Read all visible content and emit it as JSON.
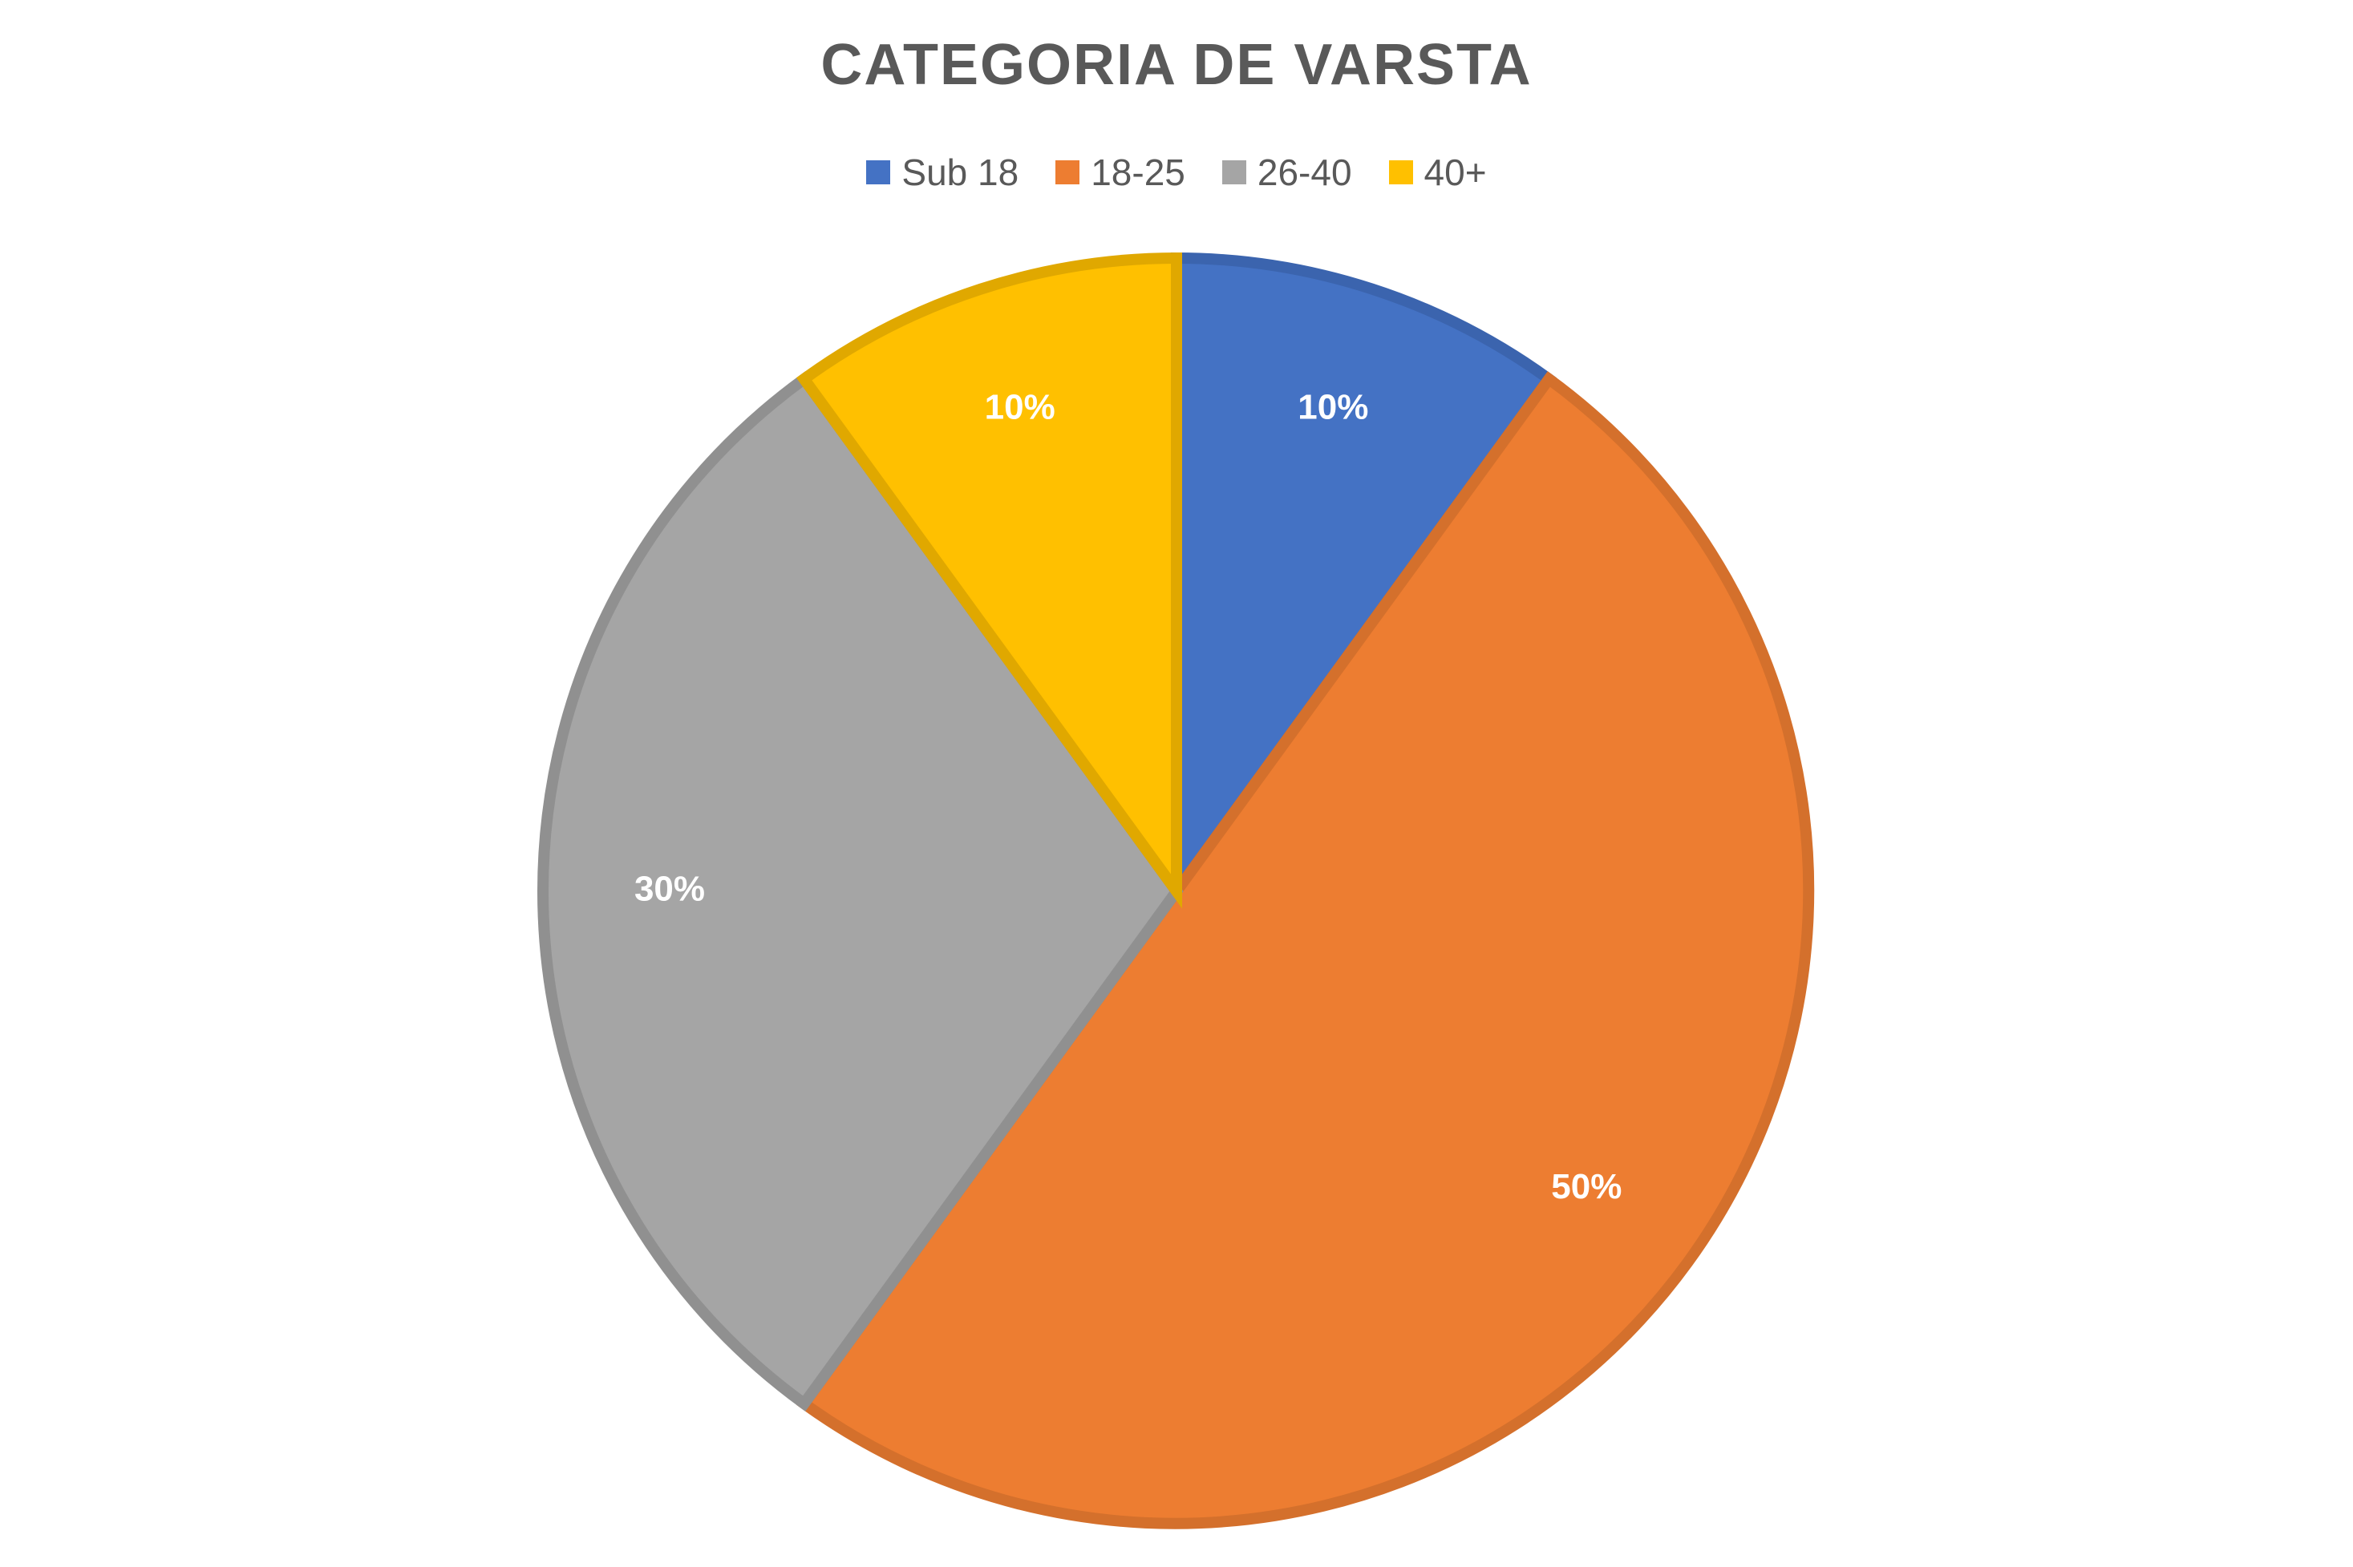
{
  "chart_data": {
    "type": "pie",
    "title": "CATEGORIA DE VARSTA",
    "categories": [
      "Sub 18",
      "18-25",
      "26-40",
      "40+"
    ],
    "values": [
      10,
      50,
      30,
      10
    ],
    "data_labels": [
      "10%",
      "50%",
      "30%",
      "10%"
    ],
    "colors": [
      "#4472C4",
      "#ED7D31",
      "#A5A5A5",
      "#FFC000"
    ],
    "border_colors": [
      "#3B64AE",
      "#D4702C",
      "#909090",
      "#E0A800"
    ],
    "legend": {
      "position": "top",
      "entries": [
        {
          "label": "Sub 18",
          "color": "#4472C4"
        },
        {
          "label": "18-25",
          "color": "#ED7D31"
        },
        {
          "label": "26-40",
          "color": "#A5A5A5"
        },
        {
          "label": "40+",
          "color": "#FFC000"
        }
      ]
    }
  }
}
